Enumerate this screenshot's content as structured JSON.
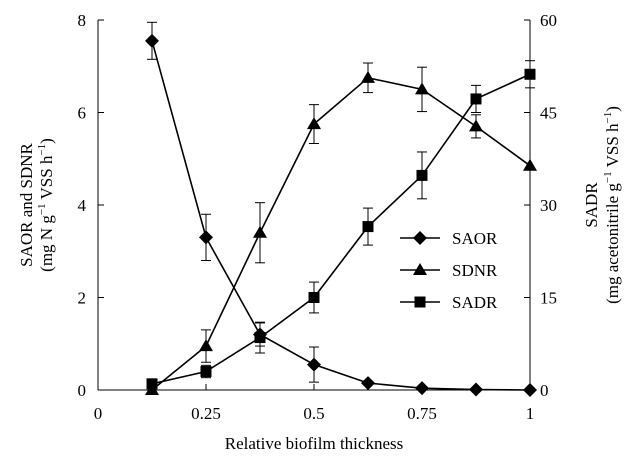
{
  "chart_data": {
    "type": "line",
    "xlabel": "Relative biofilm thickness",
    "ylabel_left_line1": "SAOR and SDNR",
    "ylabel_left_line2_parts": [
      "(mg N g",
      "−1",
      " VSS h",
      "−1",
      ")"
    ],
    "ylabel_right_line1": "SADR",
    "ylabel_right_line2_parts": [
      "(mg acetonitrile g",
      "−1",
      " VSS h",
      "−1",
      ")"
    ],
    "x_ticks": [
      "0",
      "0.25",
      "0.5",
      "0.75",
      "1"
    ],
    "x_tick_values": [
      0,
      0.25,
      0.5,
      0.75,
      1
    ],
    "y_left_ticks": [
      "0",
      "2",
      "4",
      "6",
      "8"
    ],
    "y_left_tick_values": [
      0,
      2,
      4,
      6,
      8
    ],
    "y_right_ticks": [
      "0",
      "15",
      "30",
      "45",
      "60"
    ],
    "y_right_tick_values": [
      0,
      15,
      30,
      45,
      60
    ],
    "xlim": [
      0,
      1
    ],
    "ylim_left": [
      0,
      8
    ],
    "ylim_right": [
      0,
      60
    ],
    "grid": false,
    "legend_placement": "center-right",
    "series": [
      {
        "name": "SAOR",
        "axis": "left",
        "marker": "diamond",
        "x": [
          0.125,
          0.25,
          0.375,
          0.5,
          0.625,
          0.75,
          0.875,
          1.0
        ],
        "y": [
          7.55,
          3.3,
          1.2,
          0.55,
          0.15,
          0.04,
          0.01,
          0.0
        ],
        "err": [
          0.4,
          0.5,
          0.25,
          0.38,
          0.0,
          0.0,
          0.0,
          0.0
        ]
      },
      {
        "name": "SDNR",
        "axis": "left",
        "marker": "triangle",
        "x": [
          0.125,
          0.25,
          0.375,
          0.5,
          0.625,
          0.75,
          0.875,
          1.0
        ],
        "y": [
          0.0,
          0.95,
          3.4,
          5.75,
          6.75,
          6.5,
          5.7,
          4.85
        ],
        "err": [
          0.0,
          0.35,
          0.65,
          0.42,
          0.32,
          0.48,
          0.25,
          0.0
        ]
      },
      {
        "name": "SADR",
        "axis": "right",
        "marker": "square",
        "x": [
          0.125,
          0.25,
          0.375,
          0.5,
          0.625,
          0.75,
          0.875,
          1.0
        ],
        "y": [
          1.0,
          3.0,
          8.5,
          15.0,
          26.5,
          34.8,
          47.2,
          51.2
        ],
        "err": [
          0.0,
          1.0,
          2.5,
          2.5,
          3.0,
          3.8,
          2.2,
          2.2
        ]
      }
    ]
  }
}
